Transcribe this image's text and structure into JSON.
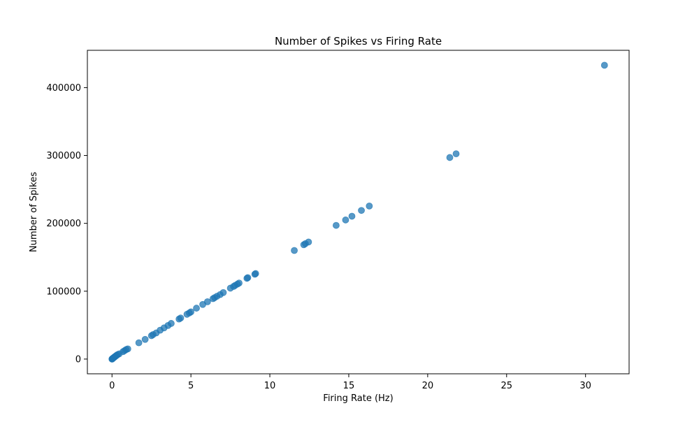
{
  "chart_data": {
    "type": "scatter",
    "title": "Number of Spikes vs Firing Rate",
    "xlabel": "Firing Rate (Hz)",
    "ylabel": "Number of Spikes",
    "xlim": [
      -1.56,
      32.76
    ],
    "ylim": [
      -21700,
      455000
    ],
    "x_ticks": [
      0,
      5,
      10,
      15,
      20,
      25,
      30
    ],
    "x_tick_labels": [
      "0",
      "5",
      "10",
      "15",
      "20",
      "25",
      "30"
    ],
    "y_ticks": [
      0,
      100000,
      200000,
      300000,
      400000
    ],
    "y_tick_labels": [
      "0",
      "100000",
      "200000",
      "300000",
      "400000"
    ],
    "grid": false,
    "point_color": "#1f77b4",
    "point_opacity": 0.75,
    "series": [
      {
        "points": [
          [
            0.0,
            0
          ],
          [
            0.01,
            200
          ],
          [
            0.02,
            400
          ],
          [
            0.03,
            600
          ],
          [
            0.05,
            1000
          ],
          [
            0.07,
            1400
          ],
          [
            0.1,
            1900
          ],
          [
            0.13,
            2500
          ],
          [
            0.16,
            3100
          ],
          [
            0.2,
            3800
          ],
          [
            0.25,
            4700
          ],
          [
            0.3,
            5600
          ],
          [
            0.35,
            6500
          ],
          [
            0.45,
            7600
          ],
          [
            0.7,
            11000
          ],
          [
            0.8,
            12500
          ],
          [
            0.9,
            14000
          ],
          [
            1.0,
            15000
          ],
          [
            1.7,
            24000
          ],
          [
            2.1,
            29000
          ],
          [
            2.5,
            34500
          ],
          [
            2.6,
            36000
          ],
          [
            2.8,
            38500
          ],
          [
            3.05,
            42500
          ],
          [
            3.3,
            46000
          ],
          [
            3.55,
            49500
          ],
          [
            3.75,
            52500
          ],
          [
            4.25,
            59000
          ],
          [
            4.35,
            60500
          ],
          [
            4.75,
            66000
          ],
          [
            4.9,
            68000
          ],
          [
            5.0,
            69500
          ],
          [
            5.35,
            75000
          ],
          [
            5.75,
            80500
          ],
          [
            6.05,
            84500
          ],
          [
            6.4,
            89000
          ],
          [
            6.5,
            90500
          ],
          [
            6.65,
            92500
          ],
          [
            6.85,
            95000
          ],
          [
            7.05,
            98000
          ],
          [
            7.5,
            104500
          ],
          [
            7.7,
            107000
          ],
          [
            7.8,
            108500
          ],
          [
            7.95,
            110500
          ],
          [
            8.05,
            112000
          ],
          [
            8.55,
            119000
          ],
          [
            8.6,
            120000
          ],
          [
            9.05,
            125000
          ],
          [
            9.1,
            126000
          ],
          [
            11.55,
            160000
          ],
          [
            12.15,
            168500
          ],
          [
            12.25,
            170000
          ],
          [
            12.45,
            172500
          ],
          [
            14.2,
            197000
          ],
          [
            14.8,
            205000
          ],
          [
            15.2,
            210500
          ],
          [
            15.8,
            219000
          ],
          [
            16.3,
            225500
          ],
          [
            21.4,
            297000
          ],
          [
            21.8,
            302500
          ],
          [
            31.2,
            433000
          ]
        ]
      }
    ]
  }
}
